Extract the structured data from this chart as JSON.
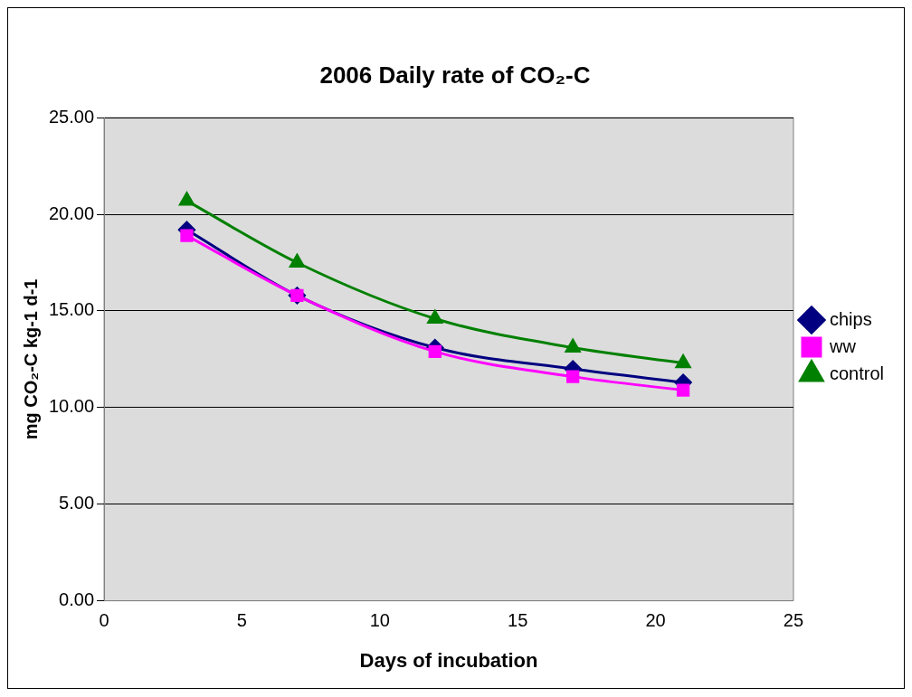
{
  "chart_data": {
    "type": "line",
    "title": "2006 Daily rate of CO₂-C",
    "xlabel": "Days of incubation",
    "ylabel": "mg CO₂-C kg-1 d-1",
    "x": [
      3,
      7,
      12,
      17,
      21
    ],
    "series": [
      {
        "name": "chips",
        "color": "#000080",
        "marker": "diamond",
        "values": [
          19.2,
          15.8,
          13.1,
          12.0,
          11.3
        ]
      },
      {
        "name": "ww",
        "color": "#ff00ff",
        "marker": "square",
        "values": [
          18.9,
          15.8,
          12.9,
          11.6,
          10.9
        ]
      },
      {
        "name": "control",
        "color": "#008000",
        "marker": "triangle",
        "values": [
          20.7,
          17.5,
          14.6,
          13.1,
          12.3
        ]
      }
    ],
    "xlim": [
      0,
      25
    ],
    "xticks": [
      0,
      5,
      10,
      15,
      20,
      25
    ],
    "ylim": [
      0,
      25
    ],
    "yticks": [
      {
        "value": 0,
        "label": "0.00"
      },
      {
        "value": 5,
        "label": "5.00"
      },
      {
        "value": 10,
        "label": "10.00"
      },
      {
        "value": 15,
        "label": "15.00"
      },
      {
        "value": 20,
        "label": "20.00"
      },
      {
        "value": 25,
        "label": "25.00"
      }
    ],
    "grid": "y",
    "legend": "right",
    "line_style": "solid"
  }
}
